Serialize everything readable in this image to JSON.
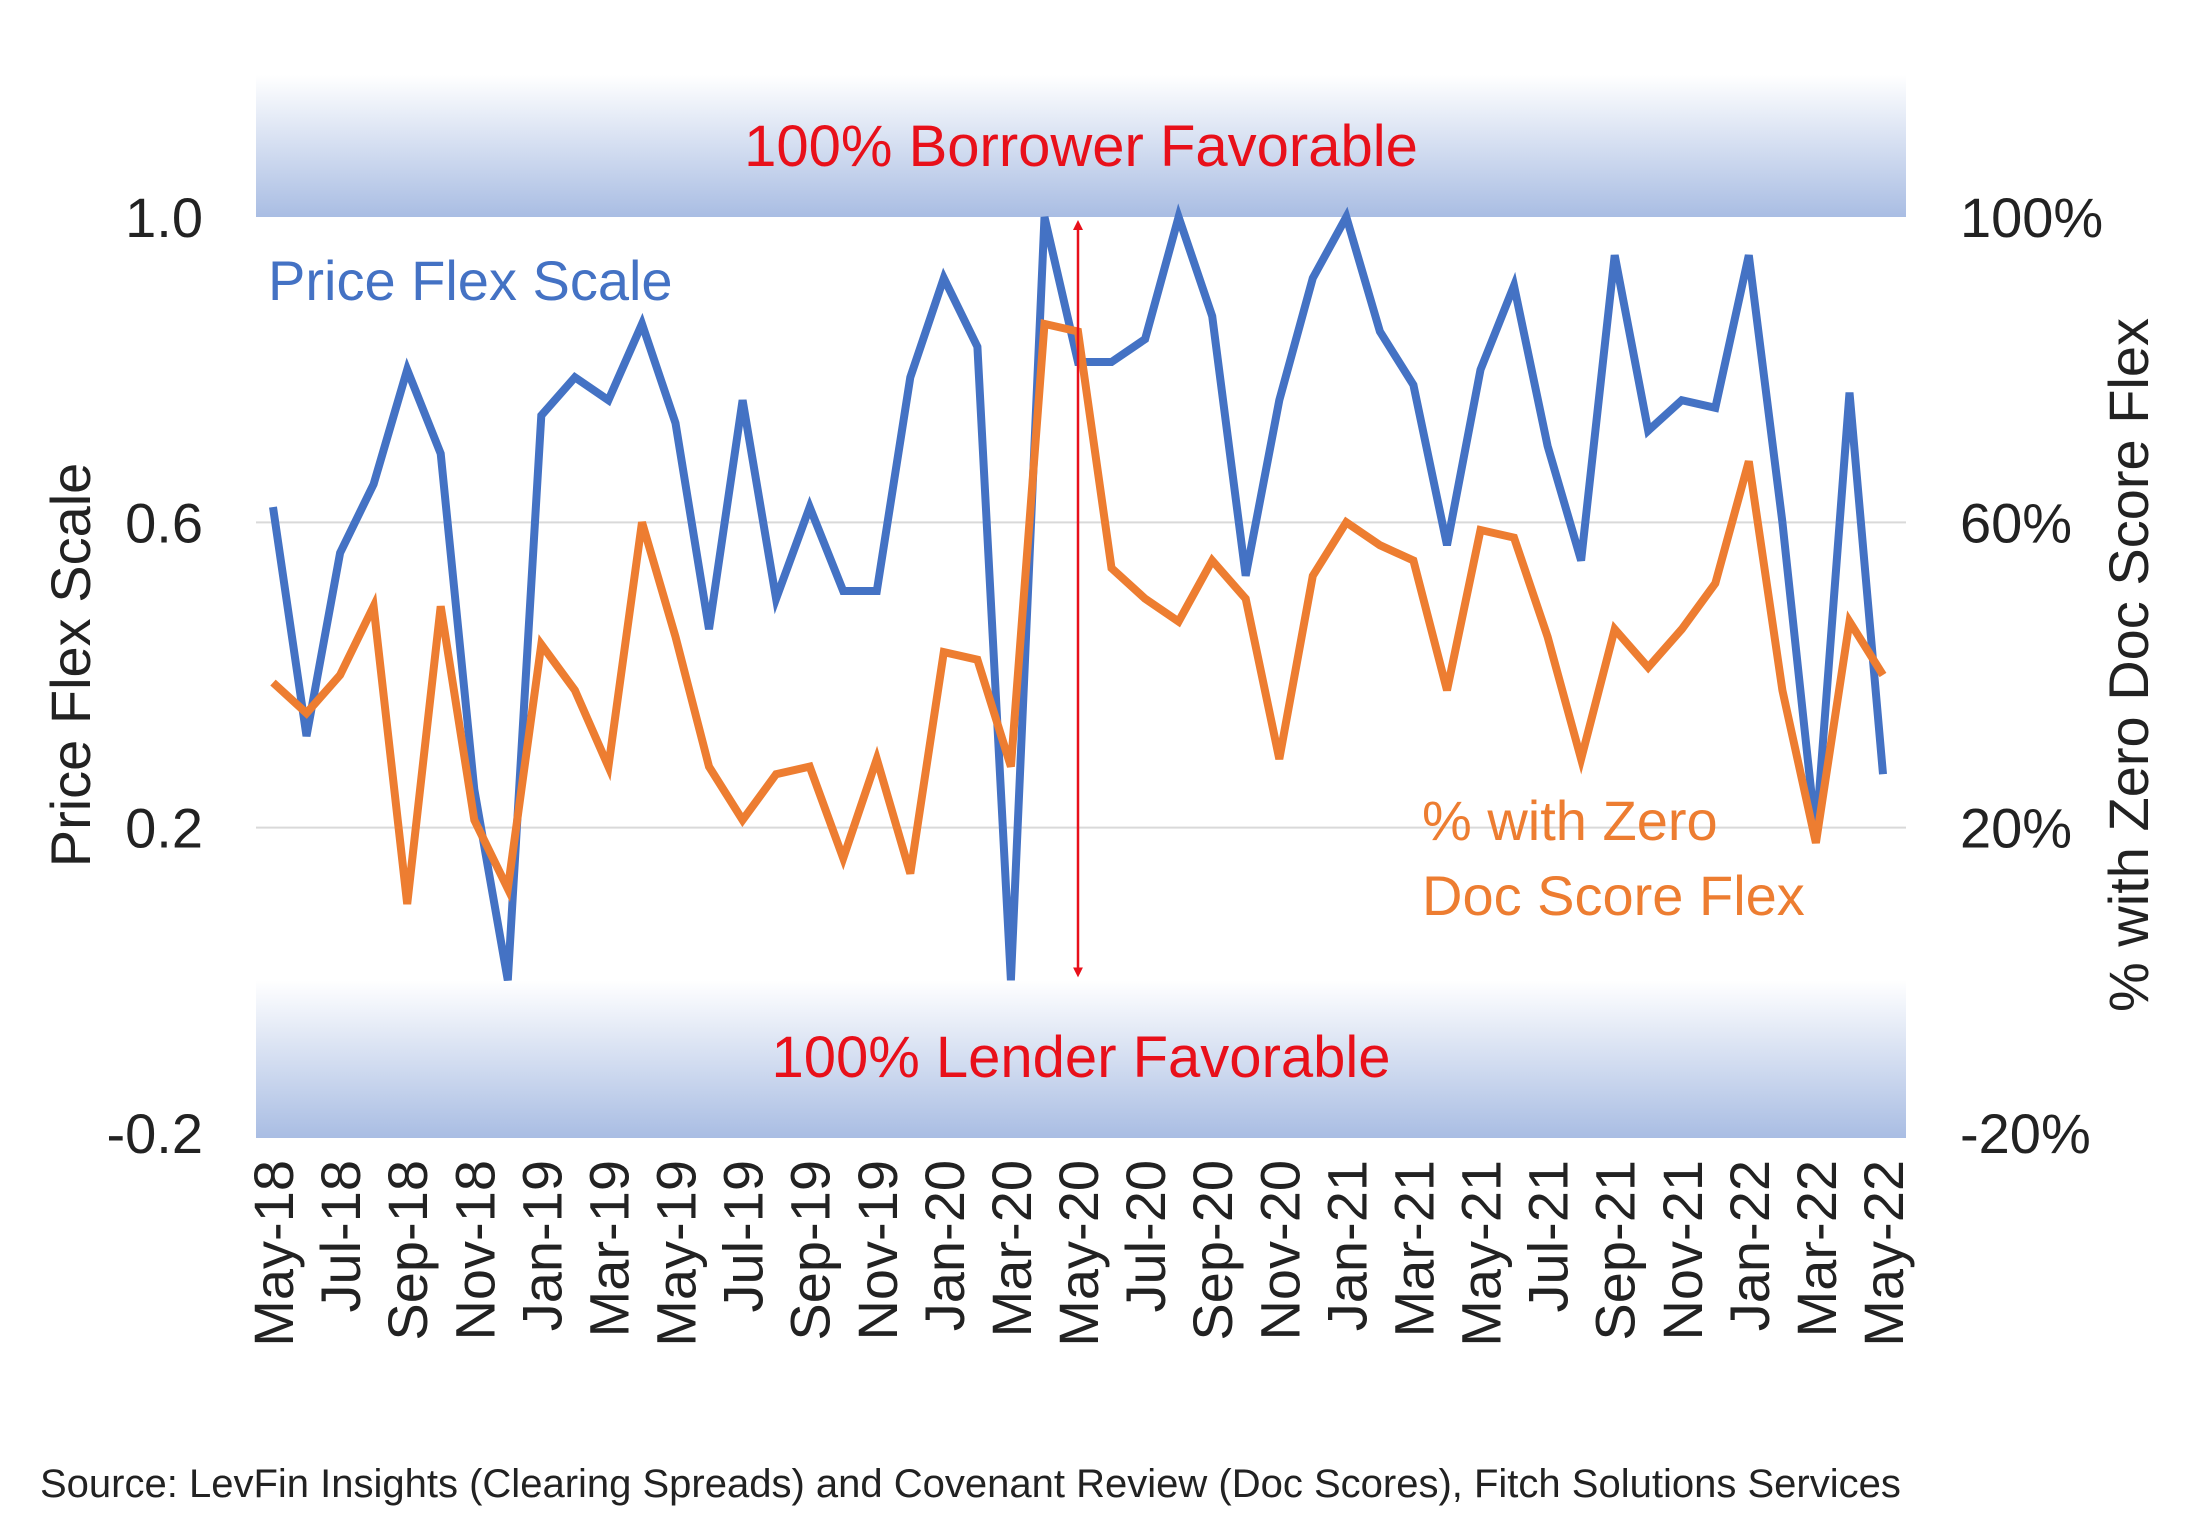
{
  "chart_data": {
    "type": "line",
    "categories": [
      "May-18",
      "Jun-18",
      "Jul-18",
      "Aug-18",
      "Sep-18",
      "Oct-18",
      "Nov-18",
      "Dec-18",
      "Jan-19",
      "Feb-19",
      "Mar-19",
      "Apr-19",
      "May-19",
      "Jun-19",
      "Jul-19",
      "Aug-19",
      "Sep-19",
      "Oct-19",
      "Nov-19",
      "Dec-19",
      "Jan-20",
      "Feb-20",
      "Mar-20",
      "Apr-20",
      "May-20",
      "Jun-20",
      "Jul-20",
      "Aug-20",
      "Sep-20",
      "Oct-20",
      "Nov-20",
      "Dec-20",
      "Jan-21",
      "Feb-21",
      "Mar-21",
      "Apr-21",
      "May-21",
      "Jun-21",
      "Jul-21",
      "Aug-21",
      "Sep-21",
      "Oct-21",
      "Nov-21",
      "Dec-21",
      "Jan-22",
      "Feb-22",
      "Mar-22",
      "Apr-22",
      "May-22"
    ],
    "x_tick_labels": [
      "May-18",
      "Jul-18",
      "Sep-18",
      "Nov-18",
      "Jan-19",
      "Mar-19",
      "May-19",
      "Jul-19",
      "Sep-19",
      "Nov-19",
      "Jan-20",
      "Mar-20",
      "May-20",
      "Jul-20",
      "Sep-20",
      "Nov-20",
      "Jan-21",
      "Mar-21",
      "May-21",
      "Jul-21",
      "Sep-21",
      "Nov-21",
      "Jan-22",
      "Mar-22",
      "May-22"
    ],
    "series": [
      {
        "name": "Price Flex Scale",
        "axis": "left",
        "color": "#4472c4",
        "values": [
          0.62,
          0.32,
          0.56,
          0.65,
          0.8,
          0.69,
          0.25,
          0.0,
          0.74,
          0.79,
          0.76,
          0.86,
          0.73,
          0.46,
          0.76,
          0.5,
          0.62,
          0.51,
          0.51,
          0.79,
          0.92,
          0.83,
          0.0,
          1.0,
          0.81,
          0.81,
          0.84,
          1.0,
          0.87,
          0.53,
          0.76,
          0.92,
          1.0,
          0.85,
          0.78,
          0.57,
          0.8,
          0.91,
          0.7,
          0.55,
          0.95,
          0.72,
          0.76,
          0.75,
          0.95,
          0.6,
          0.19,
          0.77,
          0.27
        ]
      },
      {
        "name": "% with Zero Doc Score Flex",
        "axis": "right",
        "color": "#ed7d31",
        "values": [
          0.39,
          0.35,
          0.4,
          0.49,
          0.1,
          0.49,
          0.21,
          0.12,
          0.44,
          0.38,
          0.28,
          0.6,
          0.45,
          0.28,
          0.21,
          0.27,
          0.28,
          0.16,
          0.29,
          0.14,
          0.43,
          0.42,
          0.28,
          0.86,
          0.85,
          0.54,
          0.5,
          0.47,
          0.55,
          0.5,
          0.29,
          0.53,
          0.6,
          0.57,
          0.55,
          0.38,
          0.59,
          0.58,
          0.45,
          0.29,
          0.46,
          0.41,
          0.46,
          0.52,
          0.68,
          0.38,
          0.18,
          0.47,
          0.4
        ]
      }
    ],
    "left_axis": {
      "title": "Price Flex Scale",
      "range": [
        -0.2,
        1.0
      ],
      "ticks": [
        "1.0",
        "0.6",
        "0.2",
        "-0.2"
      ],
      "tick_values": [
        1.0,
        0.6,
        0.2,
        -0.2
      ]
    },
    "right_axis": {
      "title": "% with Zero Doc Score Flex",
      "range": [
        -0.2,
        1.0
      ],
      "ticks": [
        "100%",
        "60%",
        "20%",
        "-20%"
      ],
      "tick_values": [
        1.0,
        0.6,
        0.2,
        -0.2
      ]
    },
    "grid": true,
    "annotations": {
      "top_band": "100% Borrower Favorable",
      "bottom_band": "100% Lender Favorable",
      "blue_label": "Price Flex Scale",
      "orange_label_line1": "% with Zero",
      "orange_label_line2": "Doc Score Flex",
      "arrow_color": "#e8101a",
      "arrow_at_category": "May-20"
    },
    "band_color": "#a9bde3",
    "source": "Source: LevFin Insights (Clearing Spreads) and Covenant Review (Doc Scores), Fitch Solutions Services"
  }
}
